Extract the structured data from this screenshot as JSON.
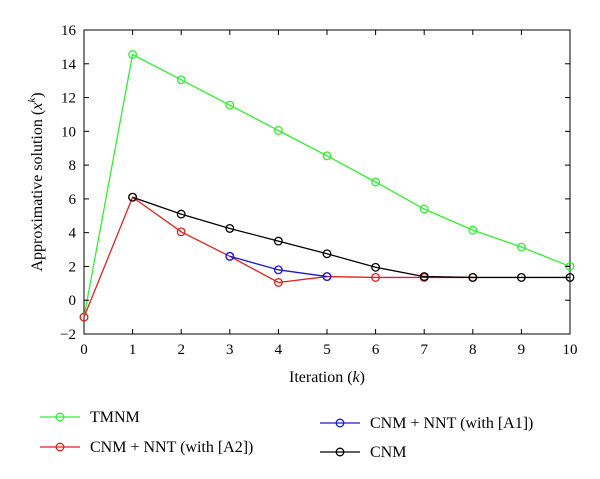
{
  "chart_data": {
    "type": "line",
    "xlabel": "Iteration (k)",
    "ylabel": "Approximative solution (x^k)",
    "xlim": [
      0,
      10
    ],
    "ylim": [
      -2,
      16
    ],
    "xticks": [
      0,
      1,
      2,
      3,
      4,
      5,
      6,
      7,
      8,
      9,
      10
    ],
    "yticks": [
      -2,
      0,
      2,
      4,
      6,
      8,
      10,
      12,
      14,
      16
    ],
    "grid": false,
    "legend_position": "bottom",
    "series": [
      {
        "name": "TMNM",
        "color": "#33ee33",
        "x": [
          0,
          1,
          2,
          3,
          4,
          5,
          6,
          7,
          8,
          9,
          10
        ],
        "values": [
          -1.0,
          14.55,
          13.05,
          11.55,
          10.05,
          8.55,
          7.0,
          5.4,
          4.15,
          3.15,
          2.0
        ]
      },
      {
        "name": "CNM + NNT (with [A2])",
        "color": "#e02020",
        "x": [
          0,
          1,
          2,
          3,
          4,
          5,
          6,
          7,
          8
        ],
        "values": [
          -1.0,
          6.1,
          4.05,
          2.6,
          1.05,
          1.4,
          1.35,
          1.35,
          1.35
        ]
      },
      {
        "name": "CNM + NNT (with [A1])",
        "color": "#1a1acc",
        "x": [
          3,
          4,
          5
        ],
        "values": [
          2.6,
          1.8,
          1.4
        ]
      },
      {
        "name": "CNM",
        "color": "#000000",
        "x": [
          1,
          2,
          3,
          4,
          5,
          6,
          7,
          8,
          9,
          10
        ],
        "values": [
          6.1,
          5.1,
          4.25,
          3.5,
          2.75,
          1.95,
          1.4,
          1.35,
          1.35,
          1.35
        ]
      }
    ],
    "legend": [
      {
        "label": "TMNM",
        "color": "#33ee33"
      },
      {
        "label": "CNM + NNT (with [A2])",
        "color": "#e02020"
      },
      {
        "label": "CNM + NNT (with [A1])",
        "color": "#1a1acc"
      },
      {
        "label": "CNM",
        "color": "#000000"
      }
    ]
  }
}
